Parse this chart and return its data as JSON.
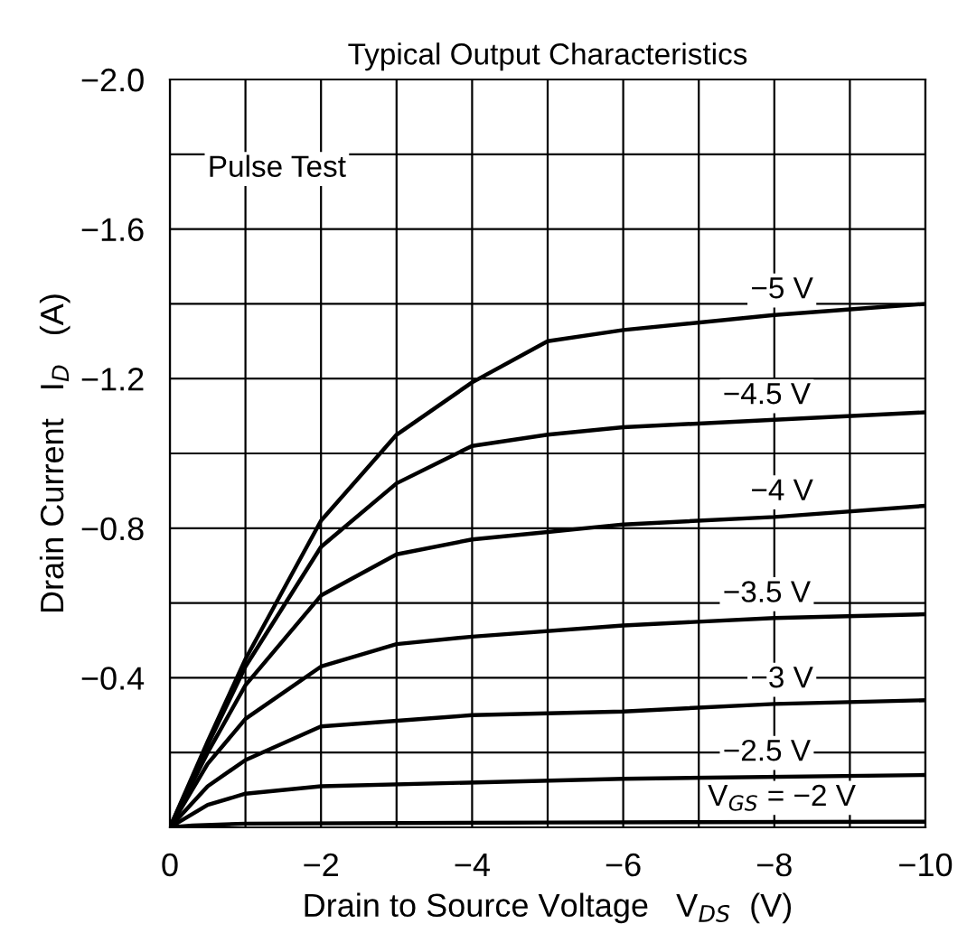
{
  "chart_data": {
    "type": "line",
    "title": "Typical Output Characteristics",
    "xlabel": "Drain to Source Voltage   V$_{DS}$  (V)",
    "ylabel": "Drain Current   I$_{D}$   (A)",
    "annotations": [
      "Pulse Test"
    ],
    "xlim": [
      0,
      -10
    ],
    "ylim": [
      0,
      -2.0
    ],
    "xticks": [
      0,
      {
        "value": -1,
        "label": null
      },
      {
        "value": -2,
        "label": "−2"
      },
      {
        "value": -3,
        "label": null
      },
      {
        "value": -4,
        "label": "−4"
      },
      {
        "value": -5,
        "label": null
      },
      {
        "value": -6,
        "label": "−6"
      },
      {
        "value": -7,
        "label": null
      },
      {
        "value": -8,
        "label": "−8"
      },
      {
        "value": -9,
        "label": null
      },
      {
        "value": -10,
        "label": "−10"
      }
    ],
    "yticks": [
      {
        "value": 0,
        "label": null
      },
      {
        "value": -0.2,
        "label": null
      },
      {
        "value": -0.4,
        "label": "−0.4"
      },
      {
        "value": -0.6,
        "label": null
      },
      {
        "value": -0.8,
        "label": "−0.8"
      },
      {
        "value": -1.0,
        "label": null
      },
      {
        "value": -1.2,
        "label": "−1.2"
      },
      {
        "value": -1.4,
        "label": null
      },
      {
        "value": -1.6,
        "label": "−1.6"
      },
      {
        "value": -1.8,
        "label": null
      },
      {
        "value": -2.0,
        "label": "−2.0"
      }
    ],
    "grid": true,
    "legend": false,
    "marker": "none",
    "line_style": "solid",
    "series": [
      {
        "name": "−5 V",
        "color": "#000000",
        "x": [
          0,
          -0.5,
          -1,
          -2,
          -3,
          -4,
          -5,
          -6,
          -8,
          -10
        ],
        "values": [
          0,
          -0.23,
          -0.45,
          -0.82,
          -1.05,
          -1.19,
          -1.3,
          -1.33,
          -1.37,
          -1.4
        ]
      },
      {
        "name": "−4.5 V",
        "color": "#000000",
        "x": [
          0,
          -0.5,
          -1,
          -2,
          -3,
          -4,
          -5,
          -6,
          -8,
          -10
        ],
        "values": [
          0,
          -0.22,
          -0.43,
          -0.75,
          -0.92,
          -1.02,
          -1.05,
          -1.07,
          -1.09,
          -1.11
        ]
      },
      {
        "name": "−4 V",
        "color": "#000000",
        "x": [
          0,
          -0.5,
          -1,
          -2,
          -3,
          -4,
          -5,
          -6,
          -8,
          -10
        ],
        "values": [
          0,
          -0.2,
          -0.38,
          -0.62,
          -0.73,
          -0.77,
          -0.79,
          -0.81,
          -0.83,
          -0.86
        ]
      },
      {
        "name": "−3.5 V",
        "color": "#000000",
        "x": [
          0,
          -0.5,
          -1,
          -2,
          -3,
          -4,
          -6,
          -8,
          -10
        ],
        "values": [
          0,
          -0.17,
          -0.29,
          -0.43,
          -0.49,
          -0.51,
          -0.54,
          -0.56,
          -0.57
        ]
      },
      {
        "name": "−3 V",
        "color": "#000000",
        "x": [
          0,
          -0.5,
          -1,
          -2,
          -4,
          -6,
          -8,
          -10
        ],
        "values": [
          0,
          -0.11,
          -0.18,
          -0.27,
          -0.3,
          -0.31,
          -0.33,
          -0.34
        ]
      },
      {
        "name": "−2.5 V",
        "color": "#000000",
        "x": [
          0,
          -0.5,
          -1,
          -2,
          -6,
          -10
        ],
        "values": [
          0,
          -0.06,
          -0.09,
          -0.11,
          -0.13,
          -0.14
        ]
      },
      {
        "name": "V$_{GS}$ = −2 V",
        "color": "#000000",
        "x": [
          0,
          -0.3,
          -1,
          -5,
          -10
        ],
        "values": [
          0,
          -0.005,
          -0.01,
          -0.013,
          -0.015
        ]
      }
    ]
  }
}
